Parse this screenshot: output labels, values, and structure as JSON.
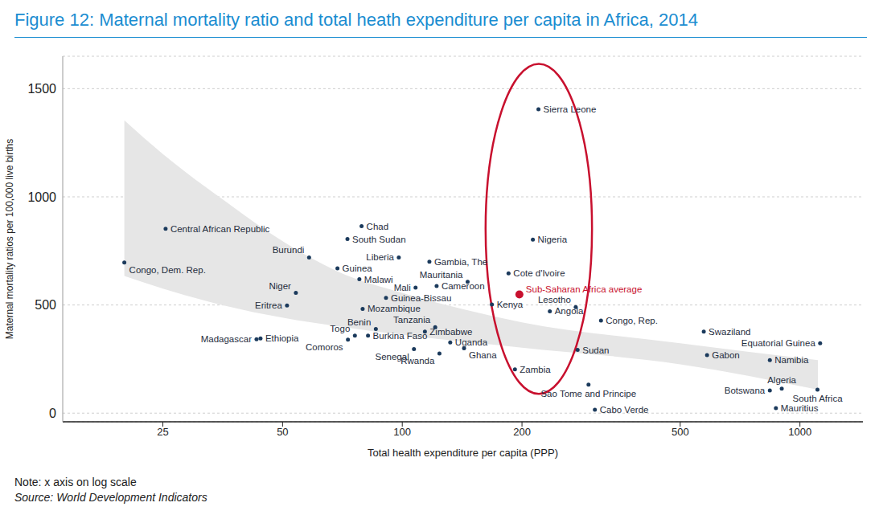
{
  "chart_data": {
    "type": "scatter",
    "title": "Figure 12: Maternal mortality ratio and total heath expenditure per capita in Africa, 2014",
    "x_label": "Total health expenditure per capita (PPP)",
    "y_label": "Maternal mortality ratios per 100,000 live births",
    "note": "Note: x axis on log scale",
    "source": "Source: World Development Indicators",
    "log": "x",
    "grid": true,
    "xlim": [
      14,
      1440
    ],
    "xticks": [
      25,
      50,
      100,
      200,
      500,
      1000
    ],
    "ylim": [
      -40,
      1650
    ],
    "yticks": [
      0,
      500,
      1000,
      1500
    ],
    "series": [
      {
        "color": "#1b3a5c",
        "marker": "circle",
        "labels": [
          "Congo, Dem. Rep.",
          "Central African Republic",
          "Madagascar",
          "Ethiopia",
          "Eritrea",
          "Niger",
          "Burundi",
          "Liberia",
          "Guinea",
          "Chad",
          "South Sudan",
          "Malawi",
          "Mali",
          "Guinea-Bissau",
          "Mozambique",
          "Benin",
          "Togo",
          "Comoros",
          "Burkina Faso",
          "Senegal",
          "Tanzania",
          "Zimbabwe",
          "Rwanda",
          "Uganda",
          "Ghana",
          "Gambia, The",
          "Mauritania",
          "Cameroon",
          "Kenya",
          "Cote d'Ivoire",
          "Nigeria",
          "Sierra Leone",
          "Zambia",
          "Angola",
          "Lesotho",
          "Sao Tome and Principe",
          "Sudan",
          "Congo, Rep.",
          "Cabo Verde",
          "Swaziland",
          "Gabon",
          "Botswana",
          "Algeria",
          "South Africa",
          "Mauritius",
          "Namibia",
          "Equatorial Guinea"
        ],
        "x": [
          20,
          25.4,
          43,
          44,
          51.3,
          54,
          58.3,
          98,
          68.7,
          79,
          72.8,
          78,
          108,
          91,
          79.5,
          85.8,
          76,
          73,
          82,
          107,
          121,
          114,
          124,
          132,
          143,
          117,
          146,
          122,
          168,
          185,
          213,
          220,
          192,
          235,
          273,
          294,
          276,
          316,
          305,
          573,
          584,
          840,
          900,
          1107,
          870,
          840,
          1124
        ],
        "values": [
          696,
          852,
          342,
          345,
          498,
          556,
          720,
          720,
          669,
          864,
          805,
          619,
          580,
          533,
          482,
          389,
          358,
          340,
          358,
          296,
          397,
          377,
          276,
          327,
          300,
          700,
          607,
          588,
          502,
          646,
          802,
          1405,
          202,
          471,
          490,
          132,
          292,
          428,
          16,
          377,
          268,
          105,
          113,
          109,
          23,
          245,
          323
        ]
      },
      {
        "name": "Sub-Saharan Africa average",
        "color": "#c8102e",
        "marker": "circle",
        "x": [
          197
        ],
        "values": [
          549
        ]
      }
    ],
    "band": {
      "color": "#e6e6e6",
      "x": [
        20,
        25,
        35.6,
        50.5,
        69,
        100,
        200,
        500,
        1110
      ],
      "lower": [
        634,
        576,
        498,
        440,
        401,
        362,
        303,
        226,
        109
      ],
      "upper": [
        1354,
        1198,
        984,
        790,
        654,
        556,
        420,
        323,
        245
      ]
    },
    "highlight": {
      "color": "#c8102e",
      "x": [
        162,
        300
      ],
      "y": [
        89,
        1615
      ]
    }
  }
}
